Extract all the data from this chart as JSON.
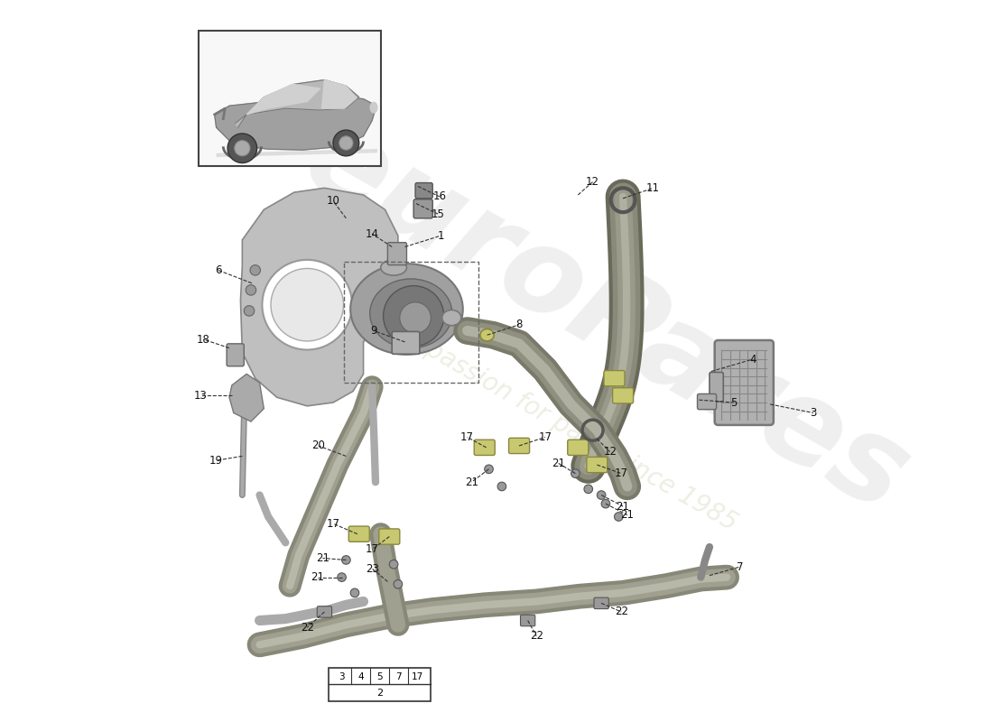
{
  "bg_color": "#ffffff",
  "watermark1": "euroPares",
  "watermark2": "a passion for parts since 1985",
  "wm_color1": "#d0d0d0",
  "wm_color2": "#e8e8c0",
  "gray_dark": "#888888",
  "gray_mid": "#aaaaaa",
  "gray_light": "#cccccc",
  "gray_component": "#999999",
  "hose_color": "#8a8a7a",
  "bracket_color": "#aaaaaa",
  "pump_color": "#909090",
  "label_fs": 8.5,
  "line_color": "#222222"
}
